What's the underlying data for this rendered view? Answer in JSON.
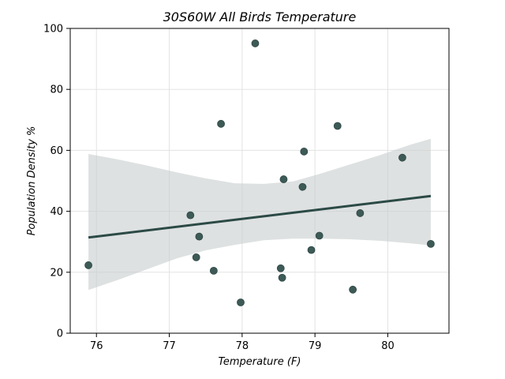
{
  "chart_data": {
    "type": "scatter",
    "title": "30S60W All Birds Temperature",
    "xlabel": "Temperature (F)",
    "ylabel": "Population Density %",
    "xlim": [
      75.64,
      80.84
    ],
    "ylim": [
      0,
      100
    ],
    "xticks": [
      76,
      77,
      78,
      79,
      80
    ],
    "yticks": [
      0,
      20,
      40,
      60,
      80,
      100
    ],
    "grid": true,
    "colors": {
      "points": "#3d5a56",
      "line": "#2b4a46",
      "band": "#c8cdcd"
    },
    "points": [
      {
        "x": 75.89,
        "y": 22.3
      },
      {
        "x": 77.29,
        "y": 38.7
      },
      {
        "x": 77.37,
        "y": 24.9
      },
      {
        "x": 77.41,
        "y": 31.7
      },
      {
        "x": 77.61,
        "y": 20.5
      },
      {
        "x": 77.71,
        "y": 68.7
      },
      {
        "x": 77.98,
        "y": 10.1
      },
      {
        "x": 78.18,
        "y": 95.1
      },
      {
        "x": 78.53,
        "y": 21.3
      },
      {
        "x": 78.55,
        "y": 18.2
      },
      {
        "x": 78.57,
        "y": 50.5
      },
      {
        "x": 78.83,
        "y": 48.0
      },
      {
        "x": 78.85,
        "y": 59.6
      },
      {
        "x": 78.95,
        "y": 27.3
      },
      {
        "x": 79.06,
        "y": 32.0
      },
      {
        "x": 79.31,
        "y": 68.0
      },
      {
        "x": 79.52,
        "y": 14.3
      },
      {
        "x": 79.62,
        "y": 39.4
      },
      {
        "x": 80.2,
        "y": 57.6
      },
      {
        "x": 80.59,
        "y": 29.3
      }
    ],
    "regression": {
      "x": [
        75.89,
        80.59
      ],
      "y": [
        31.4,
        45.0
      ]
    },
    "confidence_band": {
      "x": [
        75.89,
        76.3,
        76.7,
        77.1,
        77.5,
        77.9,
        78.3,
        78.7,
        79.1,
        79.5,
        79.9,
        80.3,
        80.59
      ],
      "upper": [
        58.8,
        57.0,
        55.0,
        52.8,
        50.8,
        49.2,
        49.0,
        49.8,
        52.5,
        55.5,
        58.5,
        61.8,
        63.8
      ],
      "lower": [
        14.2,
        17.5,
        21.0,
        24.5,
        27.2,
        29.0,
        30.5,
        31.0,
        31.0,
        30.8,
        30.3,
        29.5,
        28.8
      ]
    }
  }
}
